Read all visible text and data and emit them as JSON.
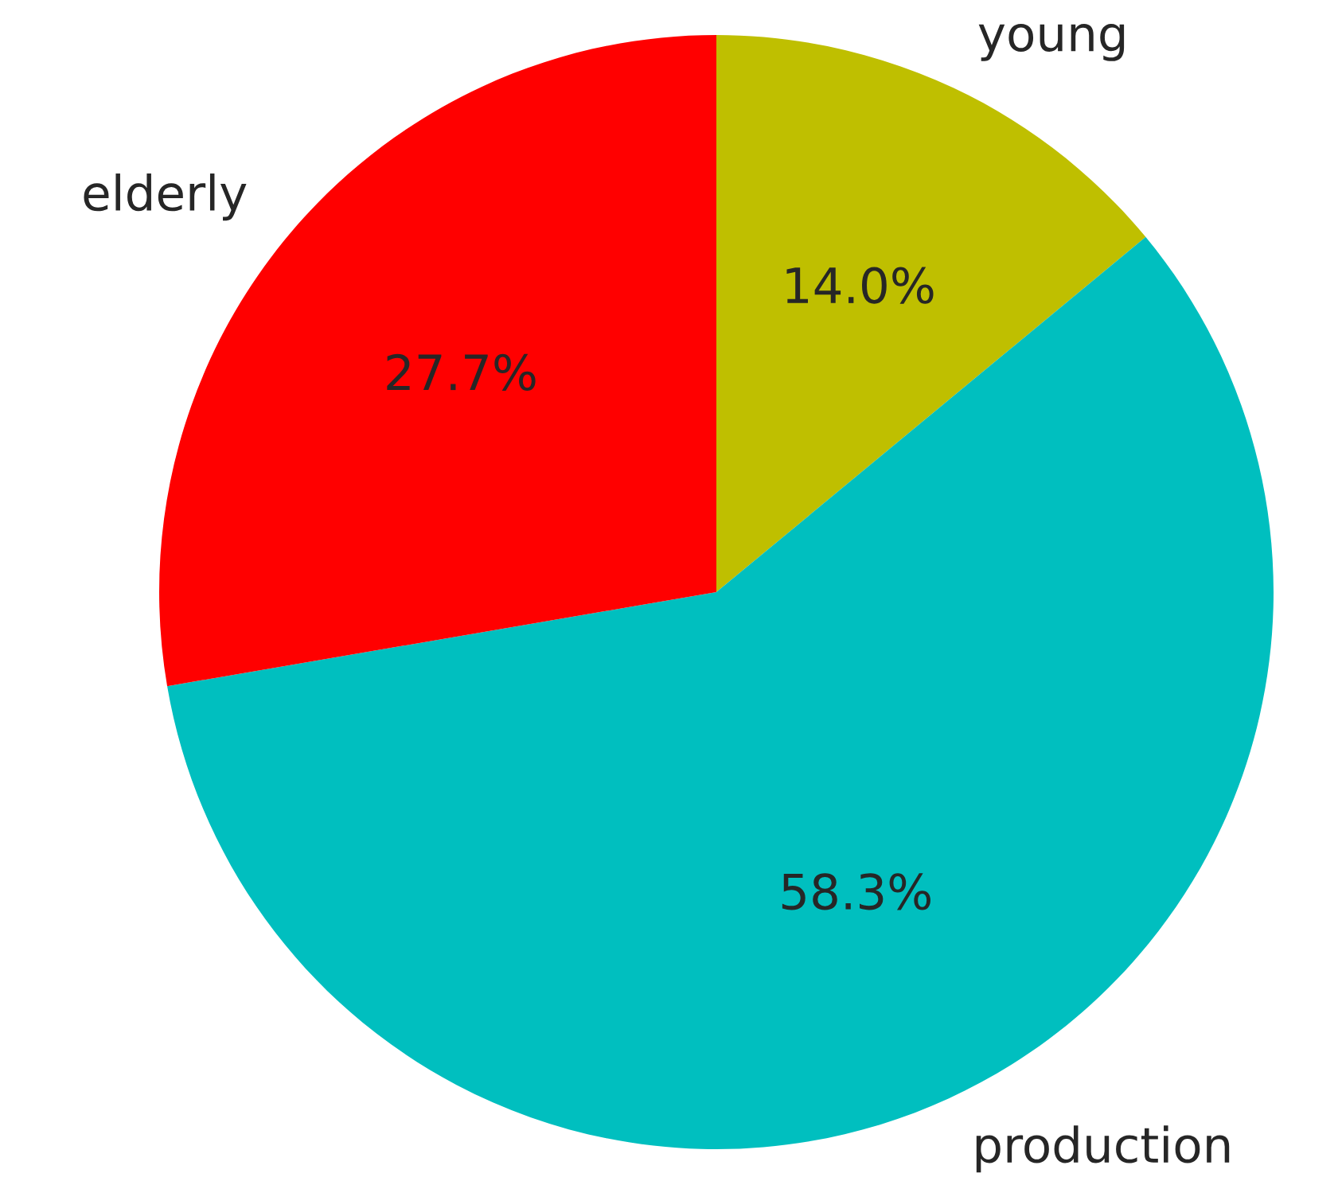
{
  "chart_data": {
    "type": "pie",
    "categories": [
      "young",
      "production",
      "elderly"
    ],
    "values": [
      14.0,
      58.3,
      27.7
    ],
    "colors": [
      "#bfbf00",
      "#00bfbf",
      "#ff0000"
    ],
    "value_labels": [
      "14.0%",
      "58.3%",
      "27.7%"
    ]
  }
}
